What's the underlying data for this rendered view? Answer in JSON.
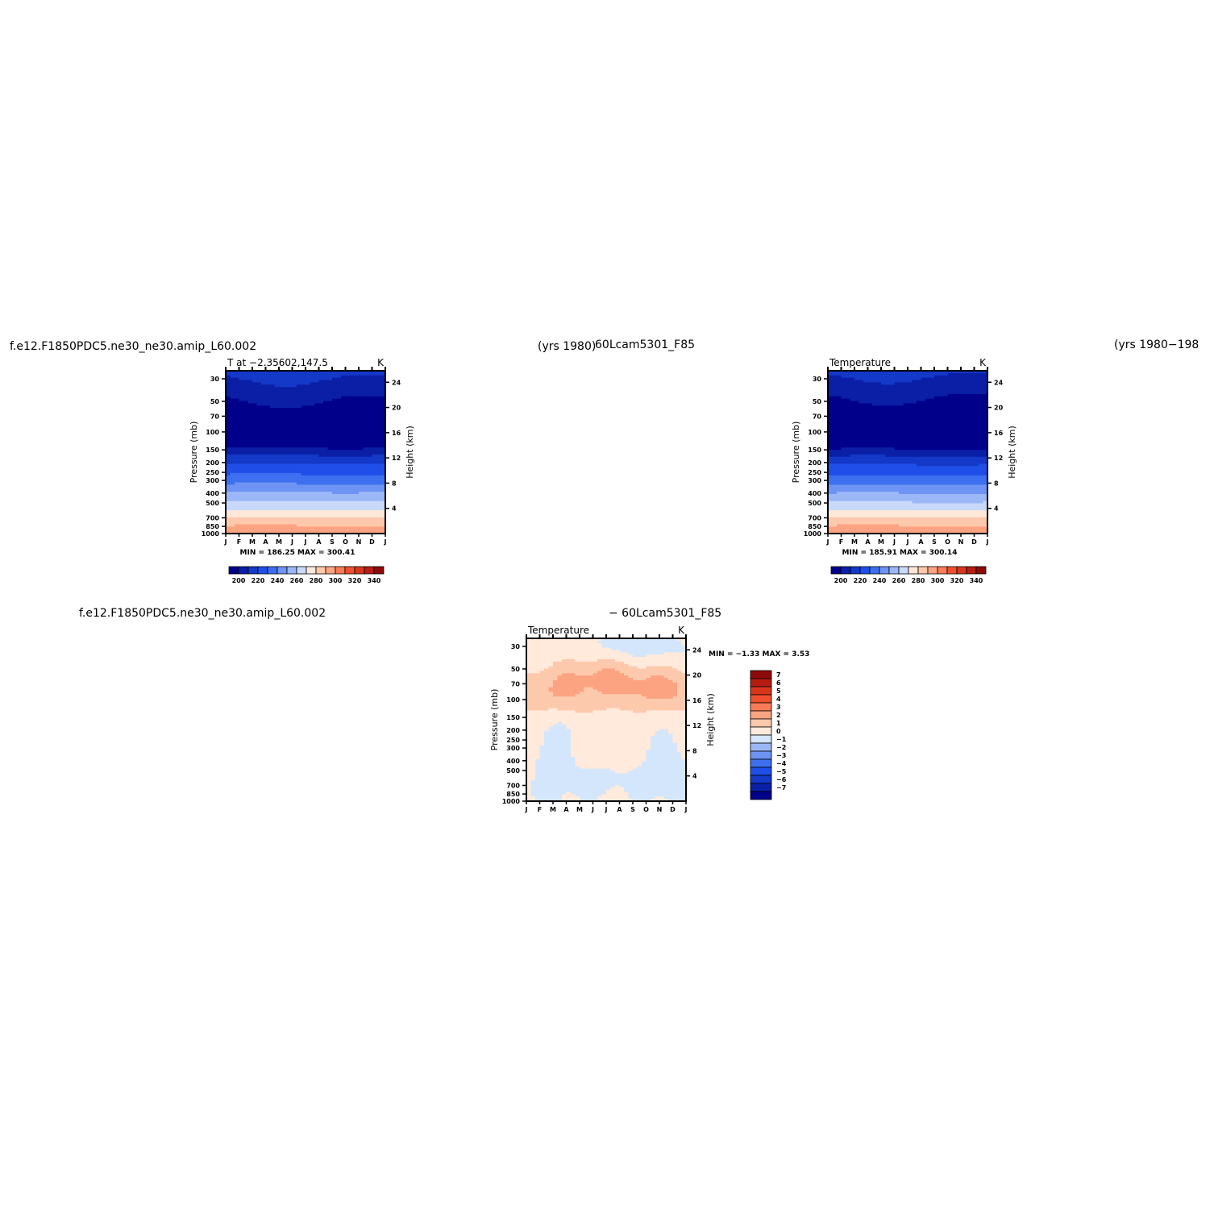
{
  "page": {
    "left_title": "f.e12.F1850PDC5.ne30_ne30.amip_L60.002",
    "top_years": "(yrs 1980)",
    "top_case2": "60Lcam5301_F85",
    "right_years": "(yrs 1980−198",
    "diff_left_title": "f.e12.F1850PDC5.ne30_ne30.amip_L60.002",
    "diff_center_title": "− 60Lcam5301_F85"
  },
  "chart_data": [
    {
      "id": "panel-case1",
      "type": "heatmap",
      "title": "T at −2.35602,147.5",
      "units": "K",
      "ylabel": "Pressure (mb)",
      "ylabel_right": "Height (km)",
      "x_ticks": [
        "J",
        "F",
        "M",
        "A",
        "M",
        "J",
        "J",
        "A",
        "S",
        "O",
        "N",
        "D",
        "J"
      ],
      "y_ticks": [
        "30",
        "50",
        "70",
        "100",
        "150",
        "200",
        "250",
        "300",
        "400",
        "500",
        "700",
        "850",
        "1000"
      ],
      "y_ticks_right": [
        "24",
        "20",
        "16",
        "12",
        "8",
        "4"
      ],
      "ylim": [
        1000,
        25
      ],
      "stats": "MIN = 186.25  MAX = 300.41",
      "colorbar_labels": [
        "200",
        "220",
        "240",
        "260",
        "280",
        "300",
        "320",
        "340"
      ],
      "levels": [
        190,
        200,
        210,
        220,
        230,
        240,
        250,
        260,
        270,
        280,
        290,
        300,
        310,
        320,
        330,
        340,
        350
      ],
      "colors": [
        "#00008b",
        "#0a1fa6",
        "#1438c8",
        "#1f4fe8",
        "#3d6ff0",
        "#6d93f4",
        "#9cb7f7",
        "#c8d9fb",
        "#ffe8da",
        "#fdc9ad",
        "#fca482",
        "#f97c56",
        "#ef5030",
        "#d8361c",
        "#b71d12",
        "#8e0a0a"
      ],
      "profile": {
        "pressure": [
          25,
          40,
          60,
          90,
          140,
          170,
          200,
          250,
          300,
          400,
          500,
          600,
          700,
          850,
          1000
        ],
        "temperature": [
          214,
          205,
          196,
          192,
          198,
          210,
          219,
          228,
          236,
          251,
          262,
          271,
          280,
          291,
          300
        ]
      }
    },
    {
      "id": "panel-case2",
      "type": "heatmap",
      "title": "Temperature",
      "units": "K",
      "ylabel": "Pressure (mb)",
      "ylabel_right": "Height (km)",
      "x_ticks": [
        "J",
        "F",
        "M",
        "A",
        "M",
        "J",
        "J",
        "A",
        "S",
        "O",
        "N",
        "D",
        "J"
      ],
      "y_ticks": [
        "30",
        "50",
        "70",
        "100",
        "150",
        "200",
        "250",
        "300",
        "400",
        "500",
        "700",
        "850",
        "1000"
      ],
      "y_ticks_right": [
        "24",
        "20",
        "16",
        "12",
        "8",
        "4"
      ],
      "ylim": [
        1000,
        25
      ],
      "stats": "MIN = 185.91  MAX = 300.14",
      "colorbar_labels": [
        "200",
        "220",
        "240",
        "260",
        "280",
        "300",
        "320",
        "340"
      ],
      "levels": [
        190,
        200,
        210,
        220,
        230,
        240,
        250,
        260,
        270,
        280,
        290,
        300,
        310,
        320,
        330,
        340,
        350
      ],
      "colors": [
        "#00008b",
        "#0a1fa6",
        "#1438c8",
        "#1f4fe8",
        "#3d6ff0",
        "#6d93f4",
        "#9cb7f7",
        "#c8d9fb",
        "#ffe8da",
        "#fdc9ad",
        "#fca482",
        "#f97c56",
        "#ef5030",
        "#d8361c",
        "#b71d12",
        "#8e0a0a"
      ],
      "profile": {
        "pressure": [
          25,
          40,
          60,
          90,
          140,
          170,
          200,
          250,
          300,
          400,
          500,
          600,
          700,
          850,
          1000
        ],
        "temperature": [
          213,
          204,
          195,
          191,
          197,
          209,
          218,
          227,
          235,
          250,
          261,
          271,
          280,
          291,
          300
        ]
      }
    },
    {
      "id": "panel-diff",
      "type": "heatmap",
      "title": "Temperature",
      "units": "K",
      "ylabel": "Pressure (mb)",
      "ylabel_right": "Height (km)",
      "x_ticks": [
        "J",
        "F",
        "M",
        "A",
        "M",
        "J",
        "J",
        "A",
        "S",
        "O",
        "N",
        "D",
        "J"
      ],
      "y_ticks": [
        "30",
        "50",
        "70",
        "100",
        "150",
        "200",
        "250",
        "300",
        "400",
        "500",
        "700",
        "850",
        "1000"
      ],
      "y_ticks_right": [
        "24",
        "20",
        "16",
        "12",
        "8",
        "4"
      ],
      "ylim": [
        1000,
        25
      ],
      "stats": "MIN =   −1.33  MAX =     3.53",
      "colorbar_labels": [
        "7",
        "6",
        "5",
        "4",
        "3",
        "2",
        "1",
        "0",
        "−1",
        "−2",
        "−3",
        "−4",
        "−5",
        "−6",
        "−7"
      ],
      "levels": [
        -8,
        -7,
        -6,
        -5,
        -4,
        -3,
        -2,
        -1,
        0,
        1,
        2,
        3,
        4,
        5,
        6,
        7,
        8
      ],
      "colors": [
        "#00008b",
        "#0a1fa6",
        "#1438c8",
        "#1f4fe8",
        "#3d6ff0",
        "#6d93f4",
        "#9cb7f7",
        "#d4e6fb",
        "#ffeadb",
        "#fdc9ad",
        "#fca482",
        "#f97c56",
        "#ef5030",
        "#d8361c",
        "#b71d12",
        "#8e0a0a"
      ]
    }
  ]
}
